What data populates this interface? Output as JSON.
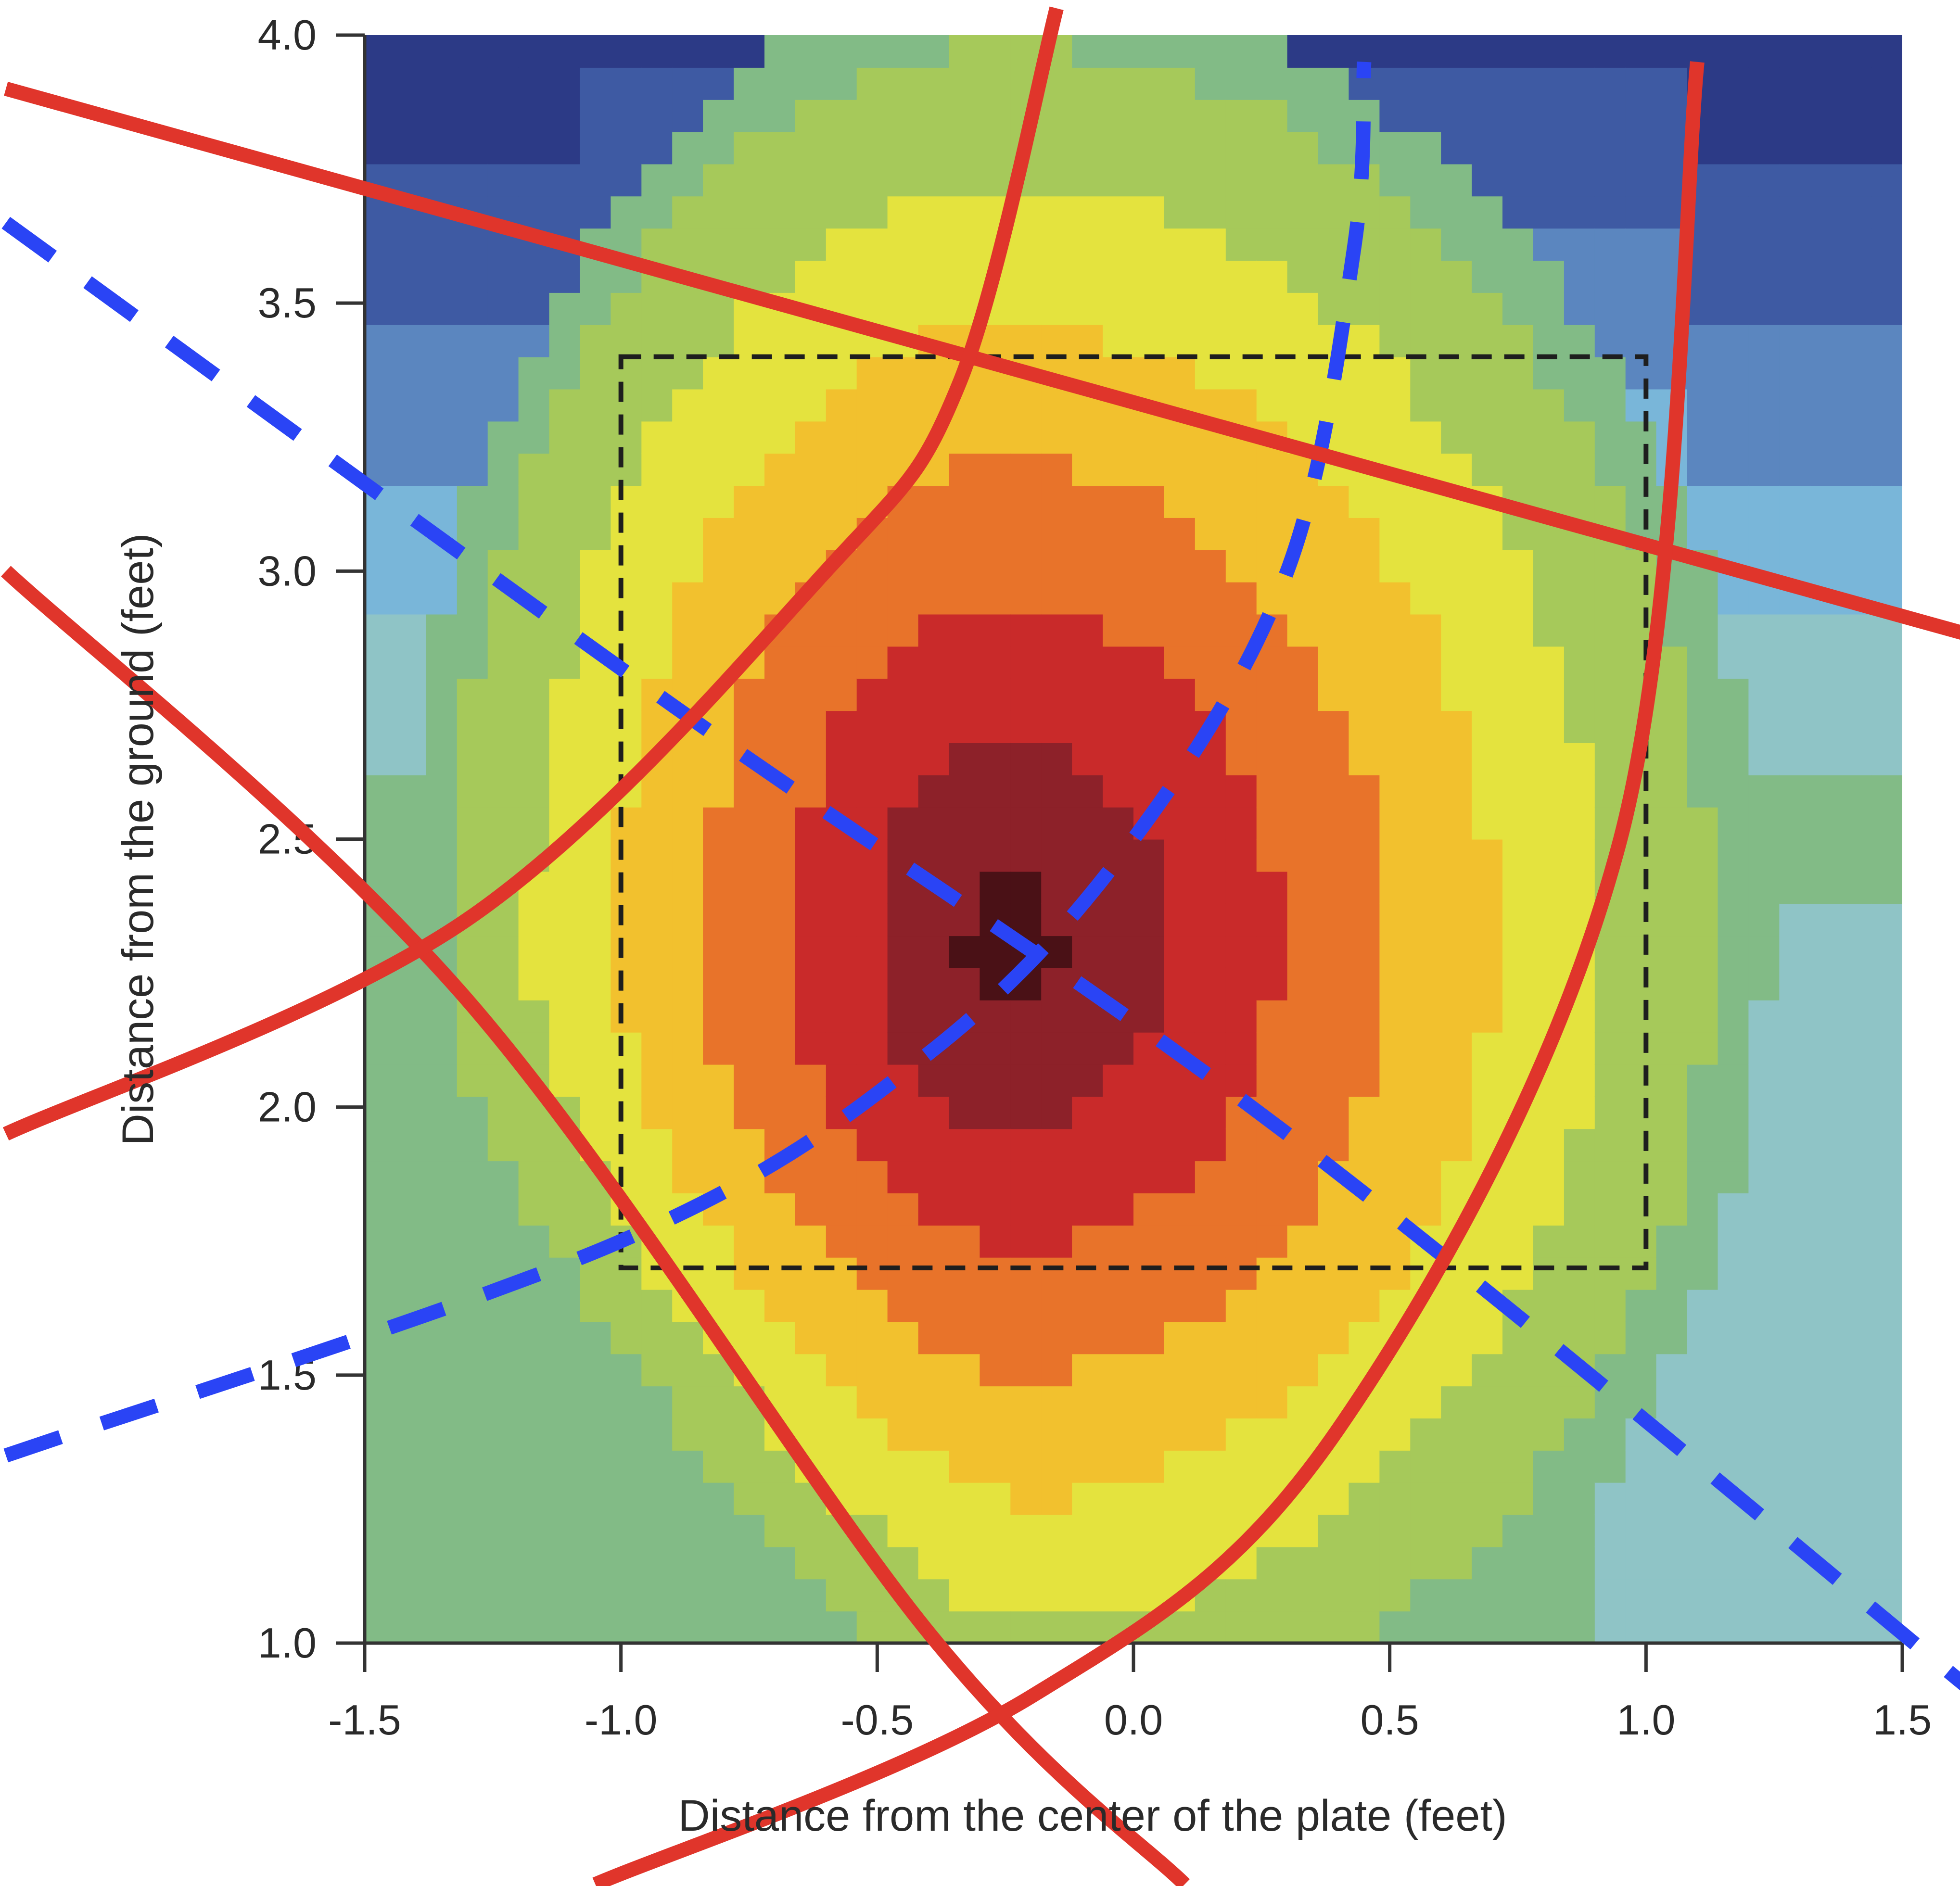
{
  "chart_data": {
    "type": "heatmap",
    "title": "",
    "xlabel": "Distance from the center of the plate (feet)",
    "ylabel": "Distance from the ground (feet)",
    "xlim": [
      -1.5,
      1.5
    ],
    "ylim": [
      1.0,
      4.0
    ],
    "xticks": [
      "-1.5",
      "-1.0",
      "-0.5",
      "0.0",
      "0.5",
      "1.0",
      "1.5"
    ],
    "yticks": [
      "1.0",
      "1.5",
      "2.0",
      "2.5",
      "3.0",
      "3.5",
      "4.0"
    ],
    "grid": false,
    "legend": "none",
    "colormap": [
      "#2c3a86",
      "#3e5aa3",
      "#5b86bf",
      "#79b6d9",
      "#8fc4c6",
      "#82bb86",
      "#a6c95a",
      "#e4e33e",
      "#f2c12e",
      "#e8732a",
      "#c92a2a",
      "#8d2129",
      "#4a1116"
    ],
    "hotspot": {
      "x": -0.25,
      "y": 2.3
    },
    "strike_zone": {
      "x": [
        -1.0,
        1.0
      ],
      "y": [
        1.7,
        3.4
      ]
    },
    "overlay_colors": {
      "solid": "#e0352b",
      "dashed": "#2a44f5"
    },
    "overlay_curves": {
      "red_solid": [
        [
          [
            -2.2,
            3.9
          ],
          [
            2.5,
            2.65
          ]
        ],
        [
          [
            -2.2,
            3.0
          ],
          [
            -1.3,
            2.2
          ],
          [
            -0.4,
            1.02
          ],
          [
            0.1,
            0.55
          ]
        ],
        [
          [
            -2.2,
            1.95
          ],
          [
            -1.3,
            2.35
          ],
          [
            -0.6,
            3.0
          ],
          [
            -0.34,
            3.35
          ],
          [
            -0.15,
            4.05
          ]
        ],
        [
          [
            -1.05,
            0.55
          ],
          [
            -0.2,
            0.9
          ],
          [
            0.4,
            1.4
          ],
          [
            0.95,
            2.5
          ],
          [
            1.1,
            3.95
          ]
        ]
      ],
      "blue_dashed": [
        [
          [
            -2.2,
            3.65
          ],
          [
            -0.9,
            2.75
          ],
          [
            0.3,
            1.95
          ],
          [
            1.65,
            0.9
          ]
        ],
        [
          [
            -2.2,
            1.35
          ],
          [
            -1.0,
            1.75
          ],
          [
            -0.4,
            2.1
          ],
          [
            0.0,
            2.5
          ],
          [
            0.3,
            3.0
          ],
          [
            0.43,
            3.6
          ],
          [
            0.45,
            3.95
          ]
        ]
      ]
    }
  }
}
